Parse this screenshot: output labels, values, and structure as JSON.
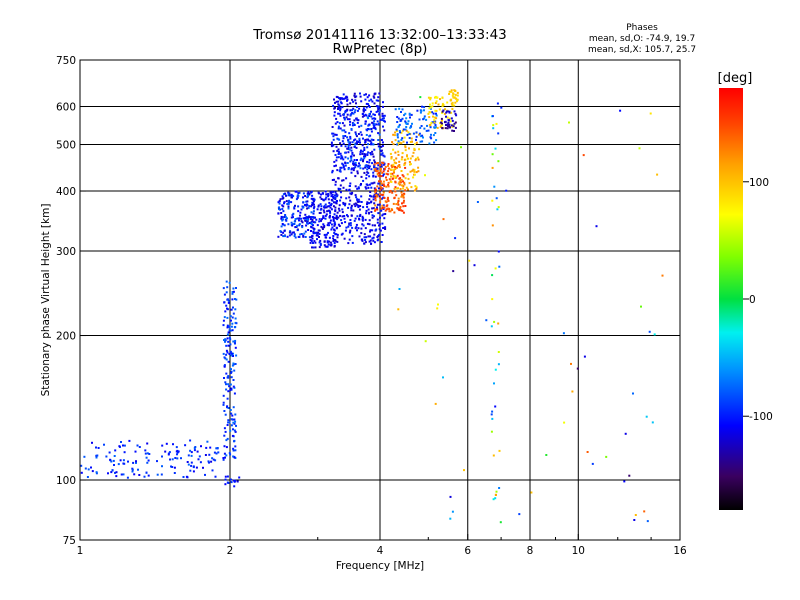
{
  "title": {
    "line1": "Tromsø 20141116 13:32:00–13:33:43",
    "line2": "RwPretec (8p)"
  },
  "phase_stats": {
    "heading": "Phases",
    "line_o": "mean, sd,O: -74.9, 19.7",
    "line_x": "mean, sd,X: 105.7, 25.7"
  },
  "colorbar": {
    "label": "[deg]",
    "min": -180,
    "max": 180,
    "ticks": [
      100,
      0,
      -100
    ],
    "tick_labels": [
      "100",
      "0",
      "-100"
    ]
  },
  "chart_data": {
    "type": "scatter",
    "xlabel": "Frequency [MHz]",
    "ylabel": "Stationary phase Virtual Height [km]",
    "x_scale": "log",
    "y_scale": "log",
    "xlim": [
      1,
      16
    ],
    "ylim": [
      75,
      750
    ],
    "grid": true,
    "x_ticks": [
      1,
      2,
      4,
      6,
      8,
      10,
      16
    ],
    "x_tick_labels": [
      "1",
      "2",
      "4",
      "6",
      "8",
      "10",
      "16"
    ],
    "y_ticks": [
      75,
      100,
      200,
      300,
      400,
      500,
      600,
      750
    ],
    "y_tick_labels": [
      "75",
      "100",
      "200",
      "300",
      "400",
      "500",
      "600",
      "750"
    ],
    "clusters": [
      {
        "x_range": [
          1.0,
          1.9
        ],
        "y_range": [
          101,
          121
        ],
        "phase_range": [
          -115,
          -75
        ],
        "count": 150
      },
      {
        "x_range": [
          1.94,
          2.06
        ],
        "y_range": [
          110,
          260
        ],
        "phase_range": [
          -110,
          -70
        ],
        "count": 170
      },
      {
        "x_range": [
          1.95,
          2.1
        ],
        "y_range": [
          97,
          102
        ],
        "phase_range": [
          -120,
          -90
        ],
        "count": 14
      },
      {
        "x_range": [
          2.5,
          2.95
        ],
        "y_range": [
          320,
          400
        ],
        "phase_range": [
          -125,
          -70
        ],
        "count": 200
      },
      {
        "x_range": [
          2.9,
          3.3
        ],
        "y_range": [
          305,
          400
        ],
        "phase_range": [
          -125,
          -95
        ],
        "count": 200
      },
      {
        "x_range": [
          3.2,
          4.1
        ],
        "y_range": [
          310,
          640
        ],
        "phase_range": [
          -125,
          -95
        ],
        "count": 600
      },
      {
        "x_range": [
          3.3,
          4.0
        ],
        "y_range": [
          440,
          600
        ],
        "phase_range": [
          -110,
          -70
        ],
        "count": 120
      },
      {
        "x_range": [
          3.9,
          4.5
        ],
        "y_range": [
          360,
          460
        ],
        "phase_range": [
          120,
          165
        ],
        "count": 160
      },
      {
        "x_range": [
          4.2,
          4.8
        ],
        "y_range": [
          400,
          540
        ],
        "phase_range": [
          80,
          125
        ],
        "count": 110
      },
      {
        "x_range": [
          4.3,
          5.2
        ],
        "y_range": [
          500,
          600
        ],
        "phase_range": [
          -100,
          -60
        ],
        "count": 100
      },
      {
        "x_range": [
          5.0,
          5.6
        ],
        "y_range": [
          540,
          630
        ],
        "phase_range": [
          70,
          110
        ],
        "count": 60
      },
      {
        "x_range": [
          5.3,
          5.7
        ],
        "y_range": [
          530,
          590
        ],
        "phase_range": [
          -150,
          -115
        ],
        "count": 40
      },
      {
        "x_range": [
          5.5,
          5.75
        ],
        "y_range": [
          600,
          650
        ],
        "phase_range": [
          80,
          105
        ],
        "count": 30
      },
      {
        "x_range": [
          6.7,
          6.95
        ],
        "y_range": [
          88,
          620
        ],
        "phase_range": [
          -110,
          130
        ],
        "count": 40
      },
      {
        "x_range": [
          4.0,
          15.0
        ],
        "y_range": [
          80,
          640
        ],
        "phase_range": [
          -150,
          150
        ],
        "count": 60
      }
    ]
  }
}
